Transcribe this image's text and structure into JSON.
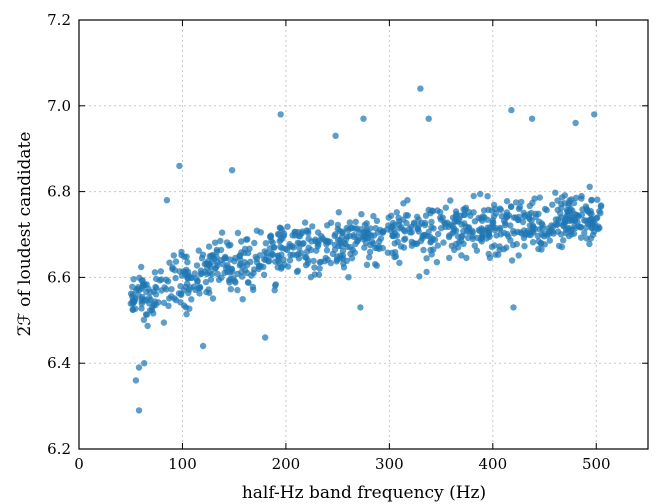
{
  "chart_data": {
    "type": "scatter",
    "xlabel": "half-Hz band frequency (Hz)",
    "ylabel": "2̅ℱ of loudest candidate",
    "xlim": [
      0,
      550
    ],
    "ylim": [
      6.2,
      7.2
    ],
    "xticks": [
      0,
      100,
      200,
      300,
      400,
      500
    ],
    "yticks": [
      6.2,
      6.4,
      6.6,
      6.8,
      7.0,
      7.2
    ],
    "xtick_labels": [
      "0",
      "100",
      "200",
      "300",
      "400",
      "500"
    ],
    "ytick_labels": [
      "6.2",
      "6.4",
      "6.6",
      "6.8",
      "7.0",
      "7.2"
    ],
    "grid": true,
    "marker_color": "#1f77b4",
    "point_count_approx": 900,
    "trend": [
      {
        "x": 50,
        "y": 6.54
      },
      {
        "x": 100,
        "y": 6.6
      },
      {
        "x": 150,
        "y": 6.63
      },
      {
        "x": 200,
        "y": 6.66
      },
      {
        "x": 250,
        "y": 6.68
      },
      {
        "x": 300,
        "y": 6.7
      },
      {
        "x": 350,
        "y": 6.71
      },
      {
        "x": 400,
        "y": 6.72
      },
      {
        "x": 450,
        "y": 6.73
      },
      {
        "x": 505,
        "y": 6.74
      }
    ],
    "outliers": [
      {
        "x": 58,
        "y": 6.29
      },
      {
        "x": 55,
        "y": 6.36
      },
      {
        "x": 58,
        "y": 6.39
      },
      {
        "x": 63,
        "y": 6.4
      },
      {
        "x": 120,
        "y": 6.44
      },
      {
        "x": 180,
        "y": 6.46
      },
      {
        "x": 272,
        "y": 6.53
      },
      {
        "x": 420,
        "y": 6.53
      },
      {
        "x": 195,
        "y": 6.98
      },
      {
        "x": 330,
        "y": 7.04
      },
      {
        "x": 418,
        "y": 6.99
      },
      {
        "x": 438,
        "y": 6.97
      },
      {
        "x": 498,
        "y": 6.98
      },
      {
        "x": 480,
        "y": 6.96
      },
      {
        "x": 338,
        "y": 6.97
      },
      {
        "x": 275,
        "y": 6.97
      },
      {
        "x": 248,
        "y": 6.93
      },
      {
        "x": 97,
        "y": 6.86
      },
      {
        "x": 85,
        "y": 6.78
      },
      {
        "x": 148,
        "y": 6.85
      }
    ]
  }
}
